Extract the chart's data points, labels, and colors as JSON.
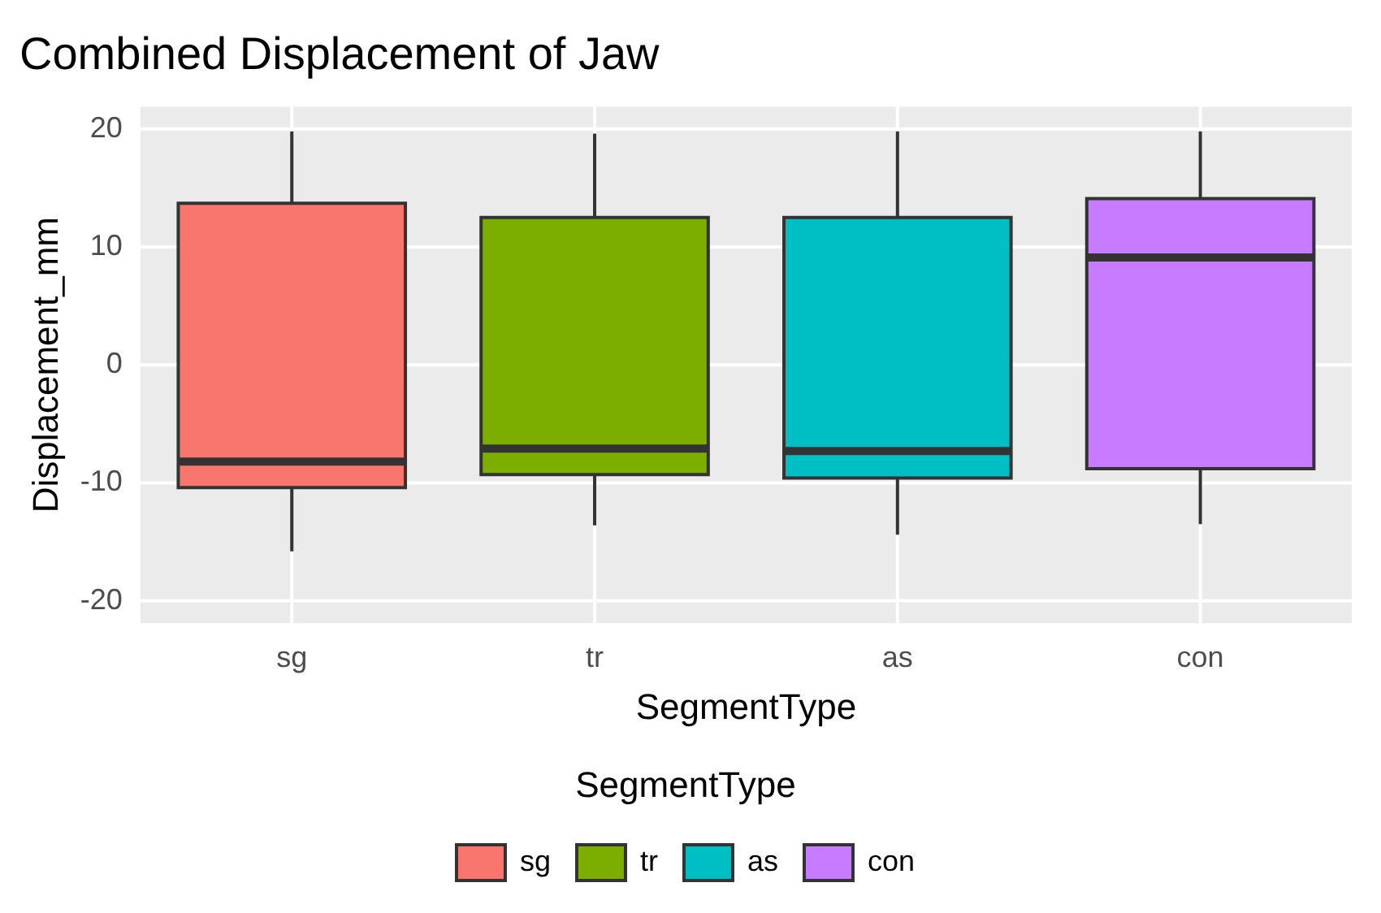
{
  "chart_data": {
    "type": "box",
    "title": "Combined Displacement of Jaw",
    "xlabel": "SegmentType",
    "ylabel": "Displacement_mm",
    "legend_title": "SegmentType",
    "categories": [
      "sg",
      "tr",
      "as",
      "con"
    ],
    "series": [
      {
        "name": "sg",
        "color": "#f8766d",
        "boxes": [
          {
            "low": -15.8,
            "q1": -10.4,
            "median": -8.2,
            "q3": 13.7,
            "high": 19.8
          },
          null,
          null,
          null
        ]
      },
      {
        "name": "tr",
        "color": "#7cae00",
        "boxes": [
          null,
          {
            "low": -13.6,
            "q1": -9.3,
            "median": -7.1,
            "q3": 12.5,
            "high": 19.6
          },
          null,
          null
        ]
      },
      {
        "name": "as",
        "color": "#00bfc4",
        "boxes": [
          null,
          null,
          {
            "low": -14.4,
            "q1": -9.6,
            "median": -7.3,
            "q3": 12.5,
            "high": 19.8
          },
          null
        ]
      },
      {
        "name": "con",
        "color": "#c77cff",
        "boxes": [
          null,
          null,
          null,
          {
            "low": -13.5,
            "q1": -8.8,
            "median": 9.1,
            "q3": 14.1,
            "high": 19.8
          }
        ]
      }
    ],
    "ylim": [
      -21.9,
      21.9
    ],
    "yticks": [
      -20,
      -10,
      0,
      10,
      20
    ],
    "grid": true,
    "legend": "bottom"
  }
}
